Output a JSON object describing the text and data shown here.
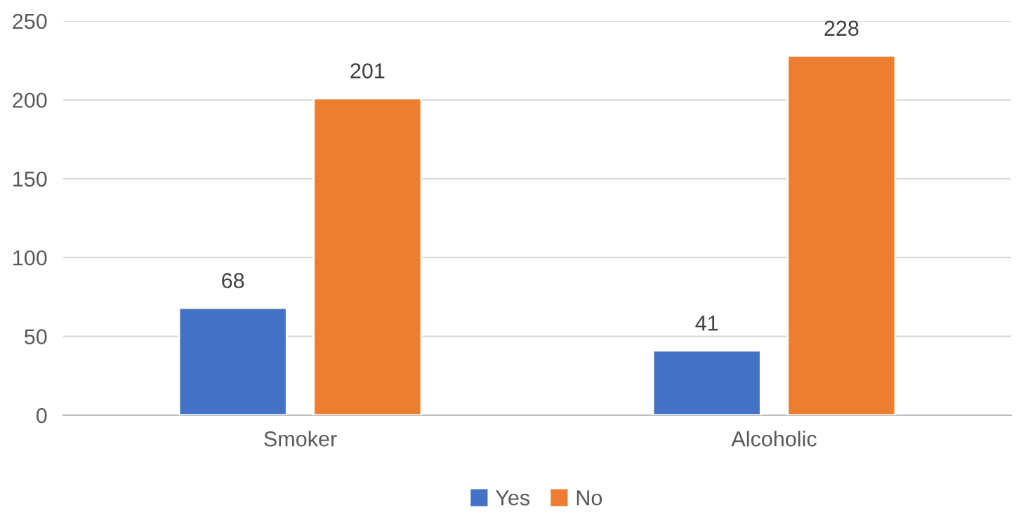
{
  "chart_data": {
    "type": "bar",
    "categories": [
      "Smoker",
      "Alcoholic"
    ],
    "series": [
      {
        "name": "Yes",
        "color": "#4472c4",
        "values": [
          68,
          41
        ]
      },
      {
        "name": "No",
        "color": "#ed7d31",
        "values": [
          201,
          228
        ]
      }
    ],
    "ylim": [
      0,
      250
    ],
    "yticks": [
      0,
      50,
      100,
      150,
      200,
      250
    ],
    "grid": "y",
    "legend": "bottom",
    "data_labels": true
  }
}
